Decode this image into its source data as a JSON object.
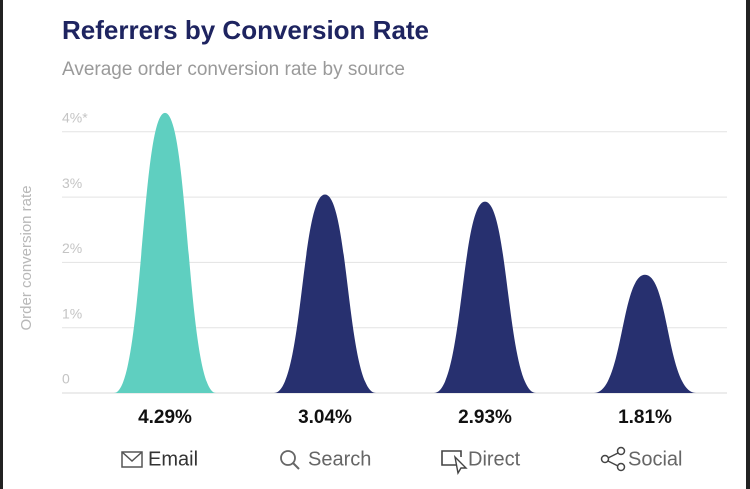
{
  "chart_data": {
    "type": "peak",
    "title": "Referrers by Conversion Rate",
    "subtitle": "Average order conversion rate by source",
    "y_label": "Order conversion rate",
    "categories": [
      "Email",
      "Search",
      "Direct",
      "Social"
    ],
    "values": [
      4.29,
      3.04,
      2.93,
      1.81
    ],
    "value_labels": [
      "4.29%",
      "3.04%",
      "2.93%",
      "1.81%"
    ],
    "colors": [
      "#5fcfc0",
      "#27306f",
      "#27306f",
      "#27306f"
    ],
    "ylim": [
      0,
      4.3
    ],
    "yticks": [
      0,
      {
        "value": 1,
        "label": "1%"
      },
      {
        "value": 2,
        "label": "2%"
      },
      {
        "value": 3,
        "label": "3%"
      },
      {
        "value": 4,
        "label": "4%*"
      }
    ],
    "grid": true
  }
}
